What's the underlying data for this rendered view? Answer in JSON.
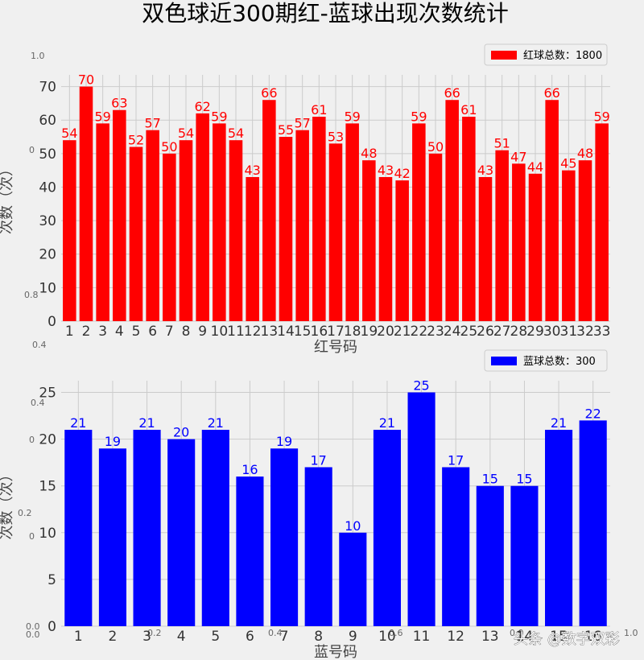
{
  "figure": {
    "title": "双色球近300期红-蓝球出现次数统计",
    "watermark": "头条 @数字双彩",
    "background": "#f0f0f0"
  },
  "chart_data": [
    {
      "type": "bar",
      "color": "#ff0000",
      "legend": "红球总数：1800",
      "legend_position": "top-right",
      "xlabel": "红号码",
      "ylabel": "次数（次）",
      "categories": [
        "1",
        "2",
        "3",
        "4",
        "5",
        "6",
        "7",
        "8",
        "9",
        "10",
        "11",
        "12",
        "13",
        "14",
        "15",
        "16",
        "17",
        "18",
        "19",
        "20",
        "21",
        "22",
        "23",
        "24",
        "25",
        "26",
        "27",
        "28",
        "29",
        "30",
        "31",
        "32",
        "33"
      ],
      "values": [
        54,
        70,
        59,
        63,
        52,
        57,
        50,
        54,
        62,
        59,
        54,
        43,
        66,
        55,
        57,
        61,
        53,
        59,
        48,
        43,
        42,
        59,
        50,
        66,
        61,
        43,
        51,
        47,
        44,
        66,
        45,
        48,
        59
      ],
      "yticks": [
        0,
        10,
        20,
        30,
        40,
        50,
        60,
        70
      ],
      "ylim": [
        0,
        73.5
      ],
      "grid": true
    },
    {
      "type": "bar",
      "color": "#0000ff",
      "legend": "蓝球总数：300",
      "legend_position": "top-right",
      "xlabel": "蓝号码",
      "ylabel": "次数（次）",
      "categories": [
        "1",
        "2",
        "3",
        "4",
        "5",
        "6",
        "7",
        "8",
        "9",
        "10",
        "11",
        "12",
        "13",
        "14",
        "15",
        "16"
      ],
      "values": [
        21,
        19,
        21,
        20,
        21,
        16,
        19,
        17,
        10,
        21,
        25,
        17,
        15,
        15,
        21,
        22
      ],
      "yticks": [
        0,
        5,
        10,
        15,
        20,
        25
      ],
      "ylim": [
        0,
        26.25
      ],
      "grid": true
    }
  ],
  "background_axes": {
    "tick_labels": [
      "1.0",
      "0",
      "0.8",
      "0.4",
      "0.4",
      "0",
      "0.2",
      "0",
      "0.0",
      "0.0",
      "0.2",
      "0.4",
      "0.6",
      "0.0",
      "1.0"
    ]
  }
}
